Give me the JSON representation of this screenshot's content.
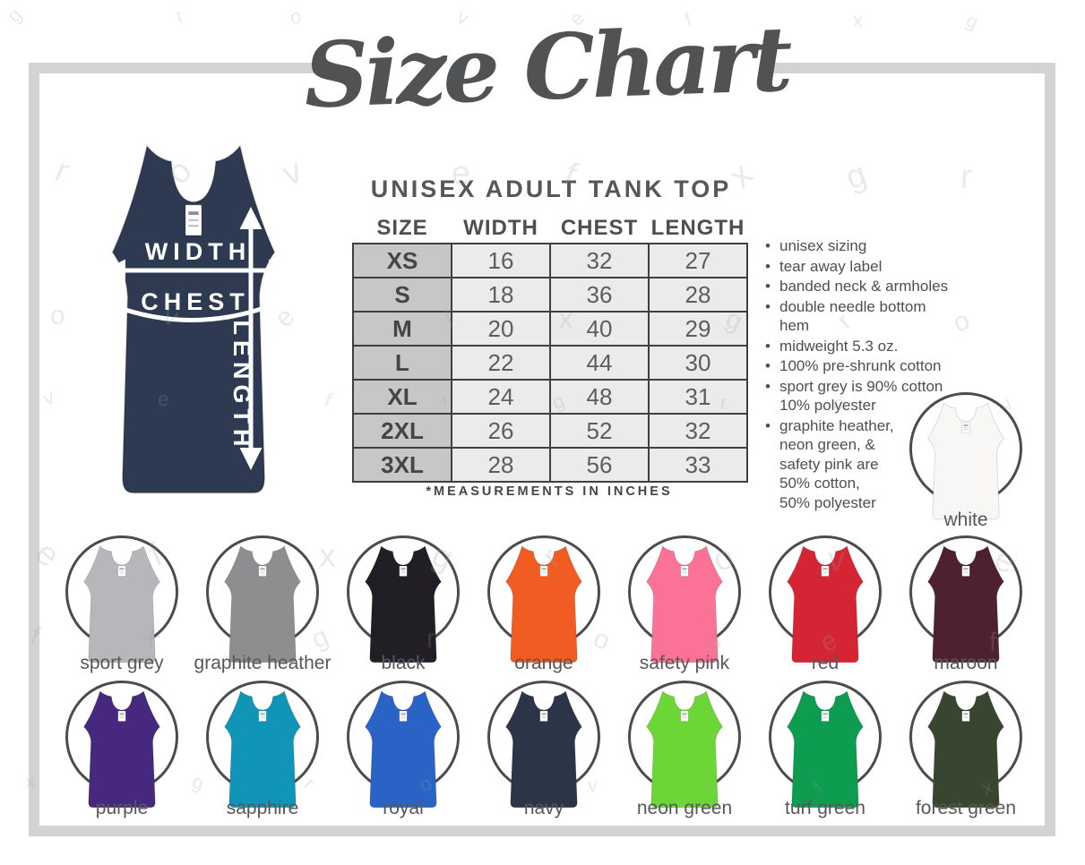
{
  "title": "Size Chart",
  "product": {
    "heading": "UNISEX ADULT TANK TOP",
    "footnote": "*MEASUREMENTS IN INCHES"
  },
  "measure_labels": {
    "width": "WIDTH",
    "chest": "CHEST",
    "length": "LENGTH"
  },
  "size_table": {
    "columns": [
      "SIZE",
      "WIDTH",
      "CHEST",
      "LENGTH"
    ],
    "rows": [
      {
        "size": "XS",
        "width": "16",
        "chest": "32",
        "length": "27"
      },
      {
        "size": "S",
        "width": "18",
        "chest": "36",
        "length": "28"
      },
      {
        "size": "M",
        "width": "20",
        "chest": "40",
        "length": "29"
      },
      {
        "size": "L",
        "width": "22",
        "chest": "44",
        "length": "30"
      },
      {
        "size": "XL",
        "width": "24",
        "chest": "48",
        "length": "31"
      },
      {
        "size": "2XL",
        "width": "26",
        "chest": "52",
        "length": "32"
      },
      {
        "size": "3XL",
        "width": "28",
        "chest": "56",
        "length": "33"
      }
    ]
  },
  "features": [
    "unisex sizing",
    "tear away label",
    "banded neck & armholes",
    "double needle bottom hem",
    "midweight 5.3 oz.",
    "100% pre-shrunk cotton",
    "sport grey is 90% cotton\n10% polyester",
    "graphite heather,\nneon green, &\nsafety pink are\n50% cotton,\n50% polyester"
  ],
  "swatches": {
    "white": {
      "label": "white",
      "hex": "#f8f7f5"
    },
    "row1": [
      {
        "label": "sport grey",
        "hex": "#b7b6bb"
      },
      {
        "label": "graphite heather",
        "hex": "#8e8d90"
      },
      {
        "label": "black",
        "hex": "#211e25"
      },
      {
        "label": "orange",
        "hex": "#f15c23"
      },
      {
        "label": "safety pink",
        "hex": "#fa7295"
      },
      {
        "label": "red",
        "hex": "#d52433"
      },
      {
        "label": "maroon",
        "hex": "#4e2130"
      }
    ],
    "row2": [
      {
        "label": "purple",
        "hex": "#46287e"
      },
      {
        "label": "sapphire",
        "hex": "#1094b8"
      },
      {
        "label": "royal",
        "hex": "#2a63c6"
      },
      {
        "label": "navy",
        "hex": "#2c3447"
      },
      {
        "label": "neon green",
        "hex": "#6cd637"
      },
      {
        "label": "turf green",
        "hex": "#0e9c50"
      },
      {
        "label": "forest green",
        "hex": "#39462f"
      }
    ]
  },
  "illustration": {
    "tank_hex": "#2e3a52"
  },
  "watermark": {
    "letters": "grovefx"
  },
  "theme": {
    "frame_hex": "#d3d3d3",
    "ink_hex": "#515254",
    "table_size_col_hex": "#c8c7c7",
    "table_cell_hex": "#ebebeb"
  }
}
